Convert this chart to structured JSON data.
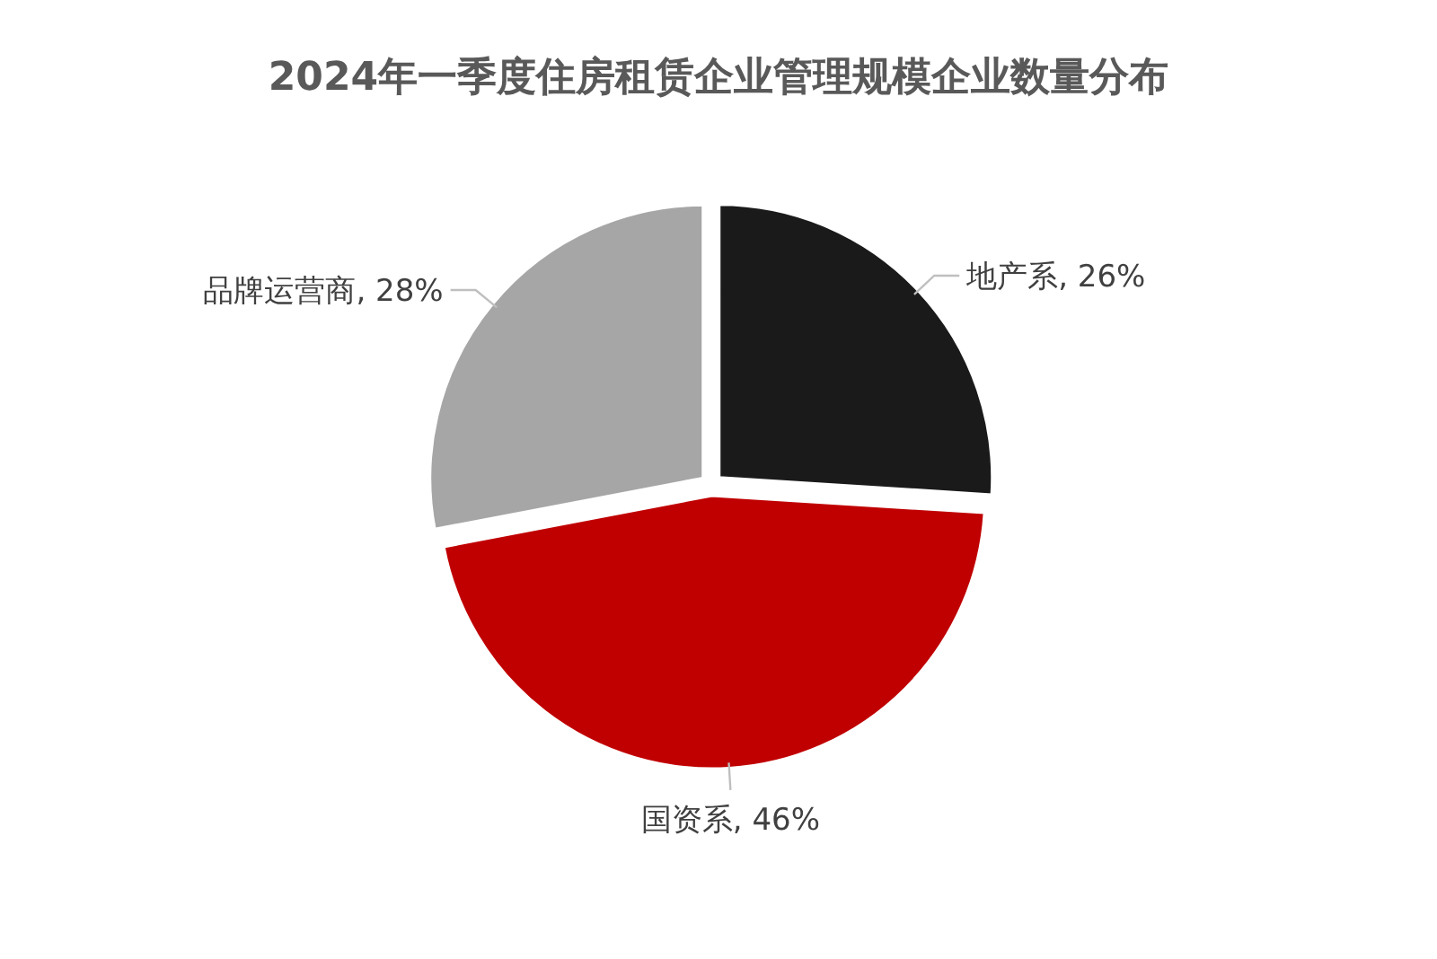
{
  "chart_data": {
    "type": "pie",
    "title": "2024年一季度住房租赁企业管理规模企业数量分布",
    "categories": [
      "地产系",
      "国资系",
      "品牌运营商"
    ],
    "values": [
      26,
      46,
      28
    ],
    "colors": [
      "#1a1a1a",
      "#c00000",
      "#a6a6a6"
    ],
    "value_labels": [
      "26%",
      "46%",
      "28%"
    ]
  }
}
